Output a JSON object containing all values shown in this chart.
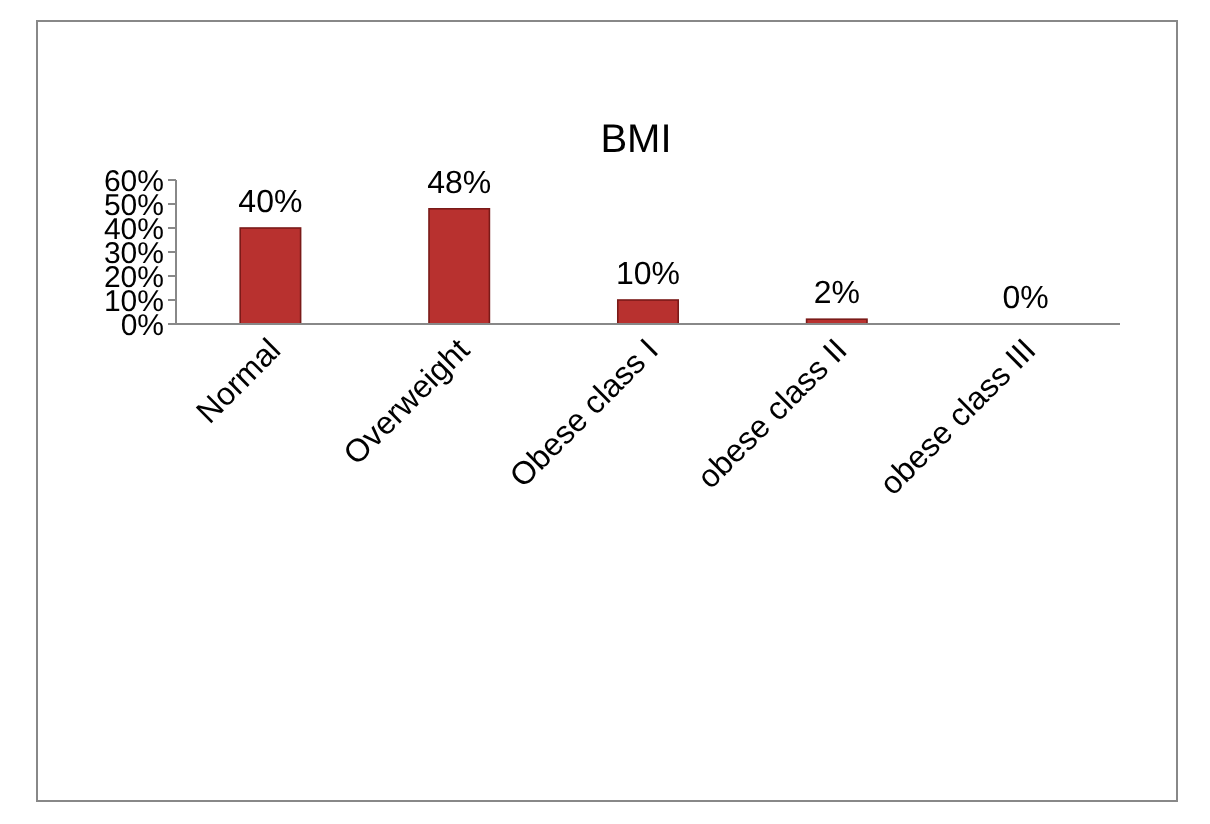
{
  "chart_data": {
    "type": "bar",
    "title": "BMI",
    "categories": [
      "Normal",
      "Overweight",
      "Obese class I",
      "obese class II",
      "obese class III"
    ],
    "values": [
      40,
      48,
      10,
      2,
      0
    ],
    "value_labels": [
      "40%",
      "48%",
      "10%",
      "2%",
      "0%"
    ],
    "color": "#b8312f",
    "ylim": [
      0,
      60
    ],
    "yticks": [
      {
        "value": 0,
        "label": "0%"
      },
      {
        "value": 10,
        "label": "10%"
      },
      {
        "value": 20,
        "label": "20%"
      },
      {
        "value": 30,
        "label": "30%"
      },
      {
        "value": 40,
        "label": "40%"
      },
      {
        "value": 50,
        "label": "50%"
      },
      {
        "value": 60,
        "label": "60%"
      }
    ],
    "grid": false
  }
}
